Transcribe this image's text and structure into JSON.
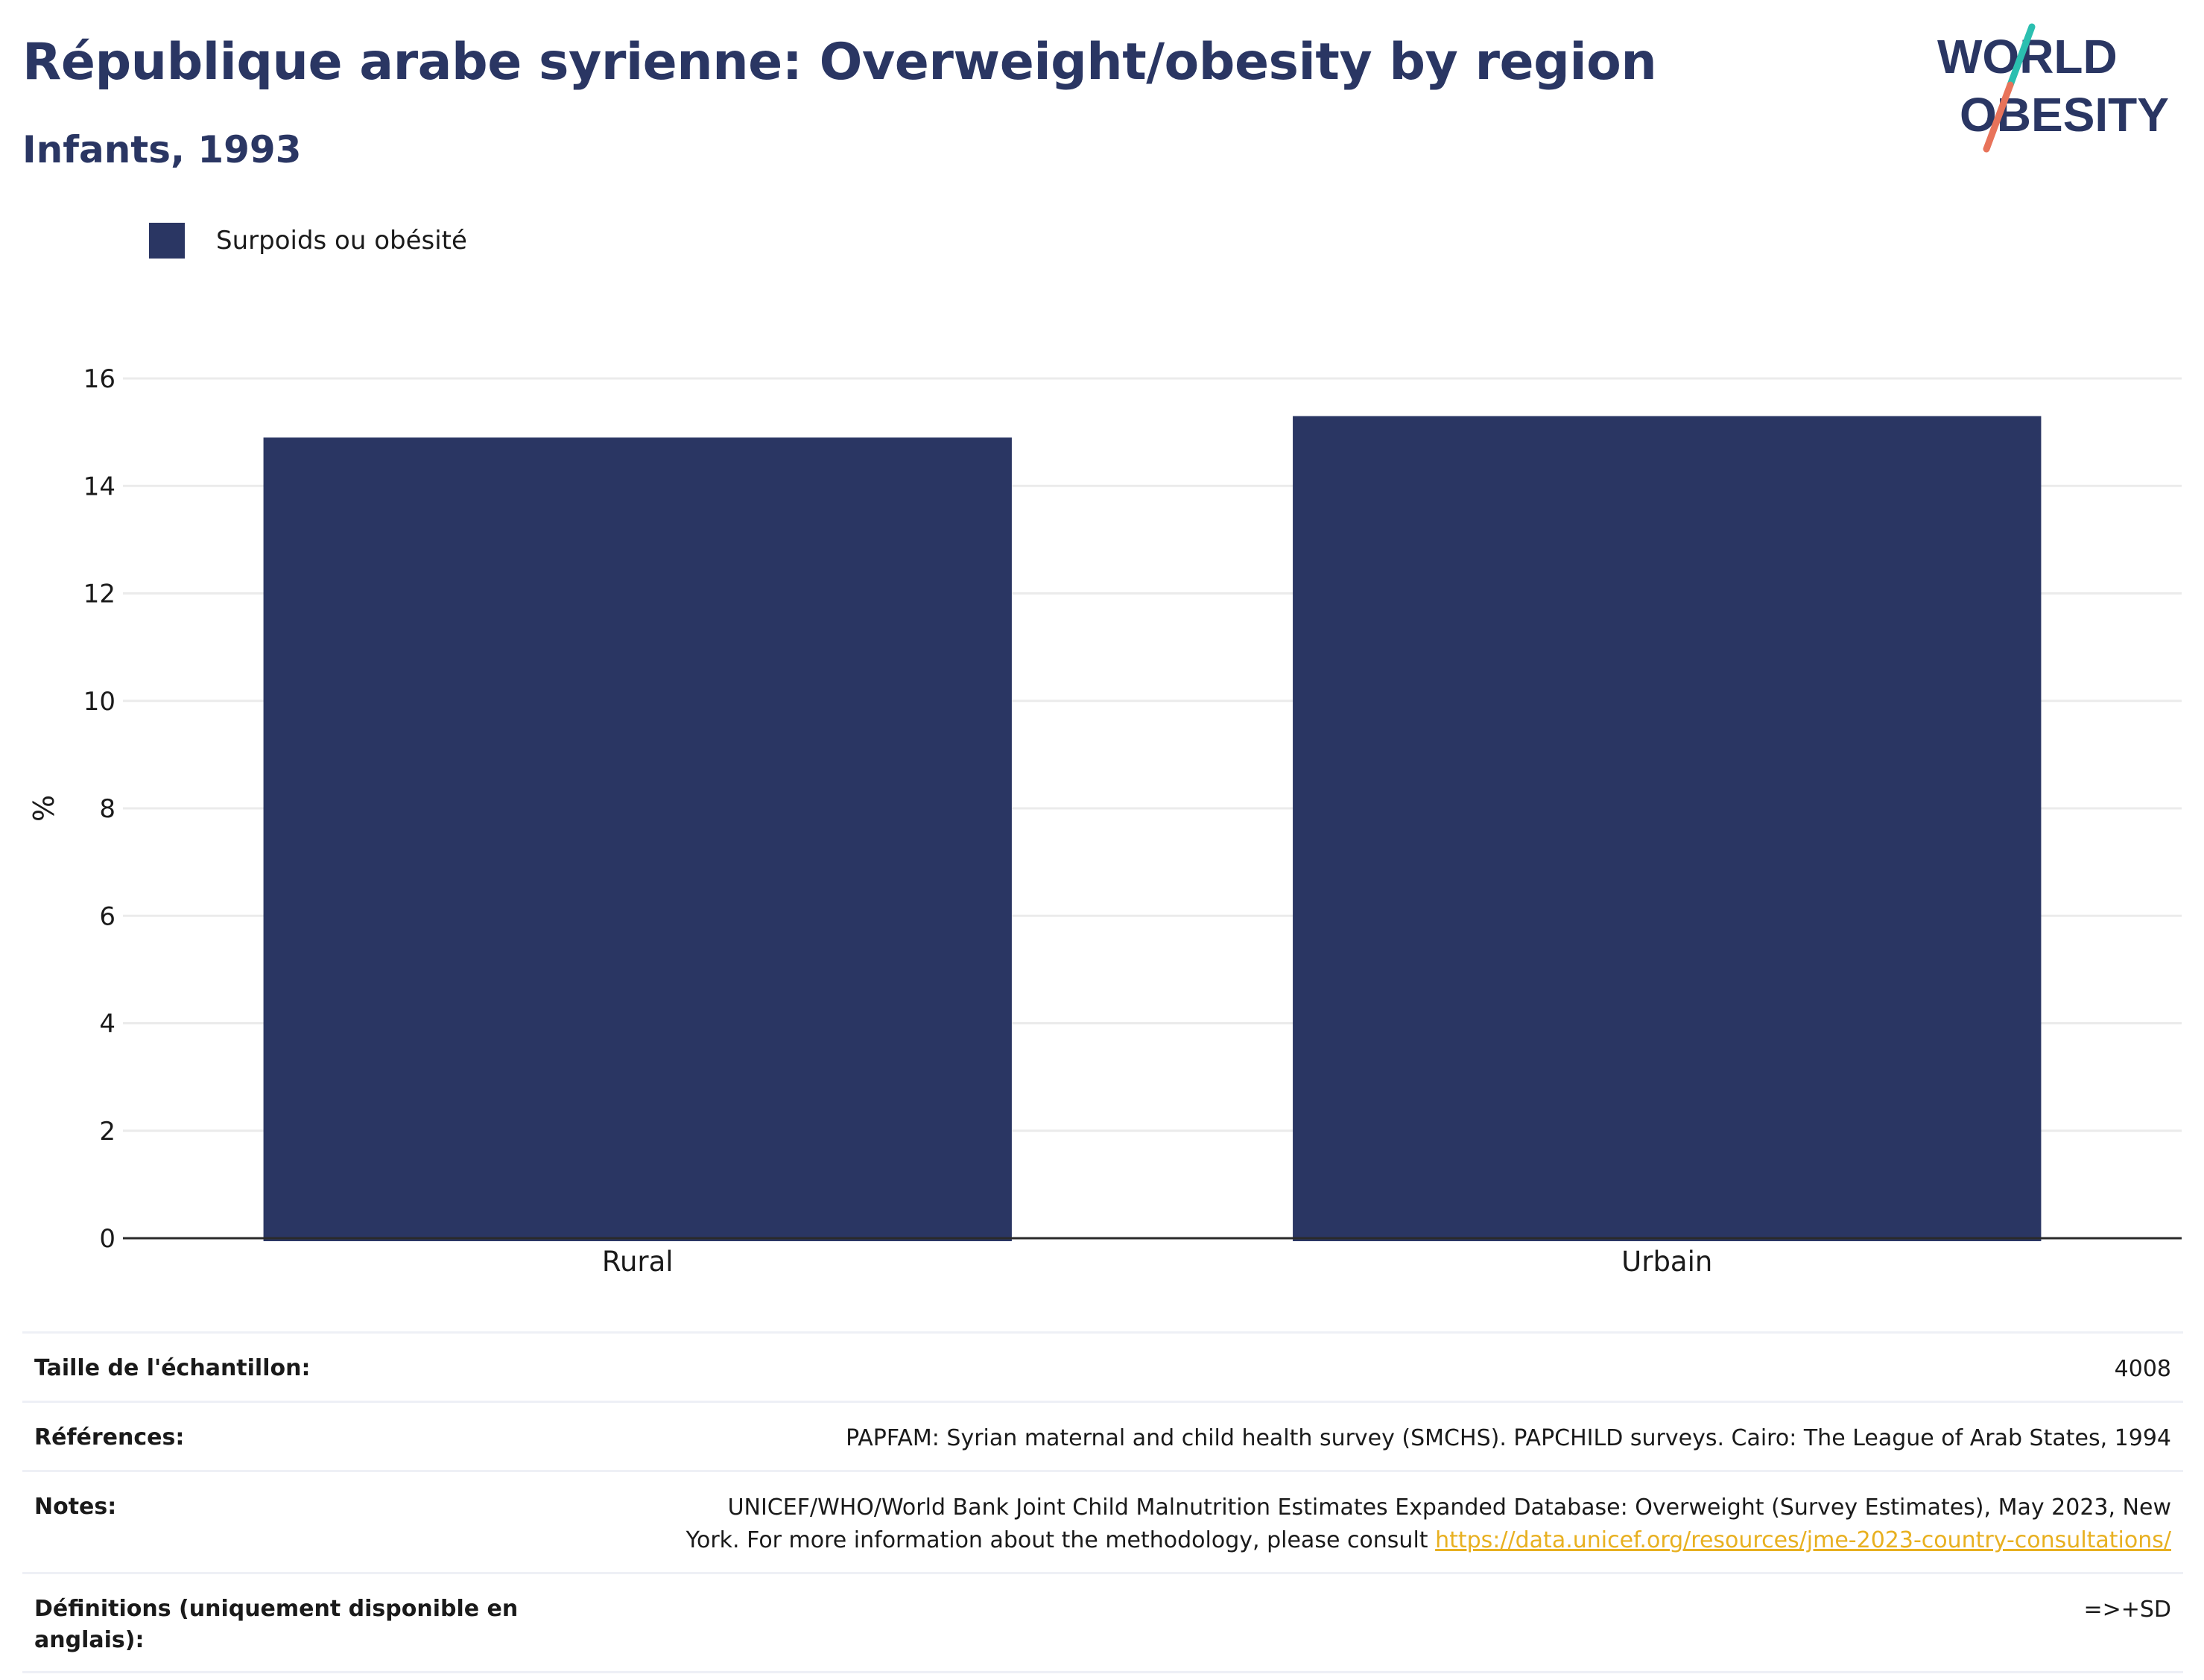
{
  "header": {
    "title": "République arabe syrienne: Overweight/obesity by region",
    "subtitle": "Infants, 1993"
  },
  "logo": {
    "line1": "WORLD",
    "line2": "OBESITY",
    "colors": {
      "text": "#2a3663",
      "slash_top": "#2bbfb0",
      "slash_bottom": "#e8735a"
    }
  },
  "legend": {
    "items": [
      {
        "label": "Surpoids ou obésité",
        "color": "#2a3663"
      }
    ]
  },
  "chart_data": {
    "type": "bar",
    "categories": [
      "Rural",
      "Urbain"
    ],
    "series": [
      {
        "name": "Surpoids ou obésité",
        "values": [
          14.9,
          15.3
        ],
        "color": "#2a3663"
      }
    ],
    "ylabel": "%",
    "xlabel": "",
    "ylim": [
      0,
      16
    ],
    "yticks": [
      0,
      2,
      4,
      6,
      8,
      10,
      12,
      14,
      16
    ],
    "grid": true,
    "legend_position": "top-left"
  },
  "info": {
    "sample_size_label": "Taille de l'échantillon:",
    "sample_size_value": "4008",
    "references_label": "Références:",
    "references_value": "PAPFAM: Syrian maternal and child health survey (SMCHS). PAPCHILD surveys. Cairo: The League of Arab States, 1994",
    "notes_label": "Notes:",
    "notes_value_line1": "UNICEF/WHO/World Bank Joint Child Malnutrition Estimates Expanded Database: Overweight (Survey Estimates), May 2023, New",
    "notes_value_line2": "York. For more information about the methodology, please consult ",
    "notes_link": "https://data.unicef.org/resources/jme-2023-country-consultations/",
    "definitions_label": "Définitions (uniquement disponible en anglais):",
    "definitions_value": "=>+SD"
  }
}
